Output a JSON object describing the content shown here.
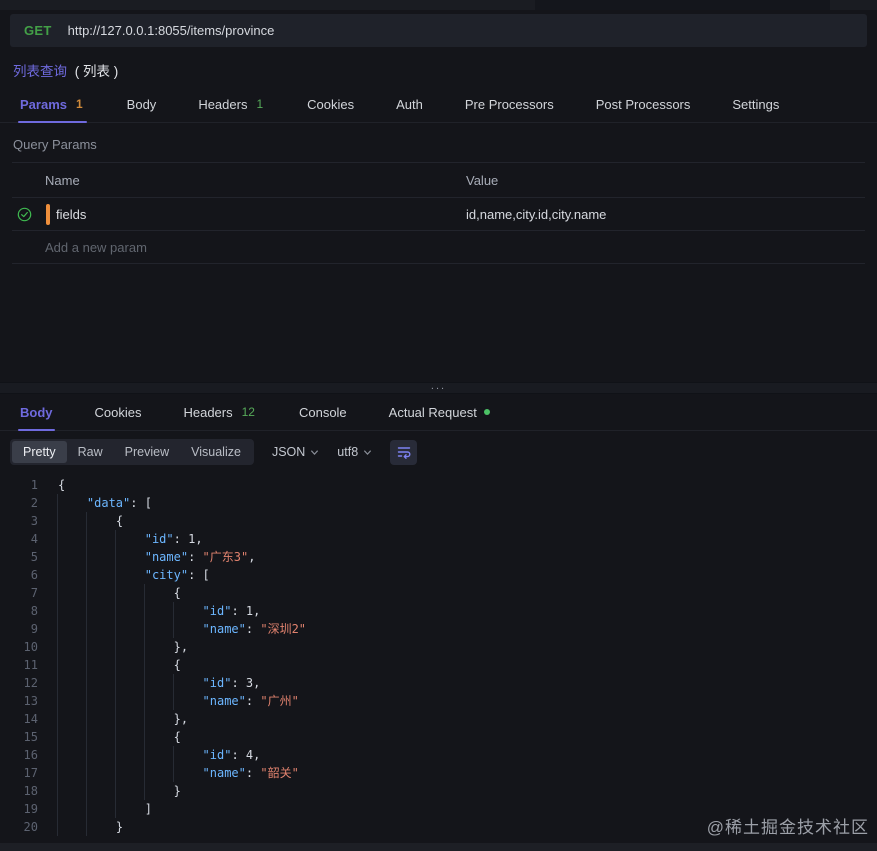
{
  "topbar": {
    "method": "GET",
    "url": "http://127.0.0.1:8055/items/province"
  },
  "request": {
    "title": "列表查询",
    "title_note": "( 列表 )"
  },
  "request_tabs": [
    {
      "label": "Params",
      "badge": "1",
      "badge_type": "orange",
      "active": true
    },
    {
      "label": "Body"
    },
    {
      "label": "Headers",
      "badge": "1",
      "badge_type": "green"
    },
    {
      "label": "Cookies"
    },
    {
      "label": "Auth"
    },
    {
      "label": "Pre Processors"
    },
    {
      "label": "Post Processors"
    },
    {
      "label": "Settings"
    }
  ],
  "query_params": {
    "section_title": "Query Params",
    "columns": {
      "name": "Name",
      "value": "Value"
    },
    "rows": [
      {
        "name": "fields",
        "value": "id,name,city.id,city.name",
        "enabled": true
      }
    ],
    "add_placeholder": "Add a new param"
  },
  "splitter": {
    "dots": "..."
  },
  "response_tabs": [
    {
      "label": "Body",
      "active": true
    },
    {
      "label": "Cookies"
    },
    {
      "label": "Headers",
      "badge": "12",
      "badge_type": "green"
    },
    {
      "label": "Console"
    },
    {
      "label": "Actual Request",
      "dot": true
    }
  ],
  "response_toolbar": {
    "modes": [
      "Pretty",
      "Raw",
      "Preview",
      "Visualize"
    ],
    "active_mode": "Pretty",
    "format_dropdown": "JSON",
    "encoding_dropdown": "utf8",
    "wrap_icon": "word-wrap-icon"
  },
  "response_body_lines": [
    "{",
    "    \"data\": [",
    "        {",
    "            \"id\": 1,",
    "            \"name\": \"广东3\",",
    "            \"city\": [",
    "                {",
    "                    \"id\": 1,",
    "                    \"name\": \"深圳2\"",
    "                },",
    "                {",
    "                    \"id\": 3,",
    "                    \"name\": \"广州\"",
    "                },",
    "                {",
    "                    \"id\": 4,",
    "                    \"name\": \"韶关\"",
    "                }",
    "            ]",
    "        }"
  ],
  "watermark": "@稀土掘金技术社区",
  "colors": {
    "accent_purple": "#6f6ade",
    "method_green": "#43a047",
    "badge_orange": "#d08a3a",
    "badge_green": "#57ab5a",
    "check_green": "#3fb950",
    "row_marker_orange": "#ef8f3c",
    "key_blue": "#6cb6ff",
    "string_red": "#e0826e"
  }
}
